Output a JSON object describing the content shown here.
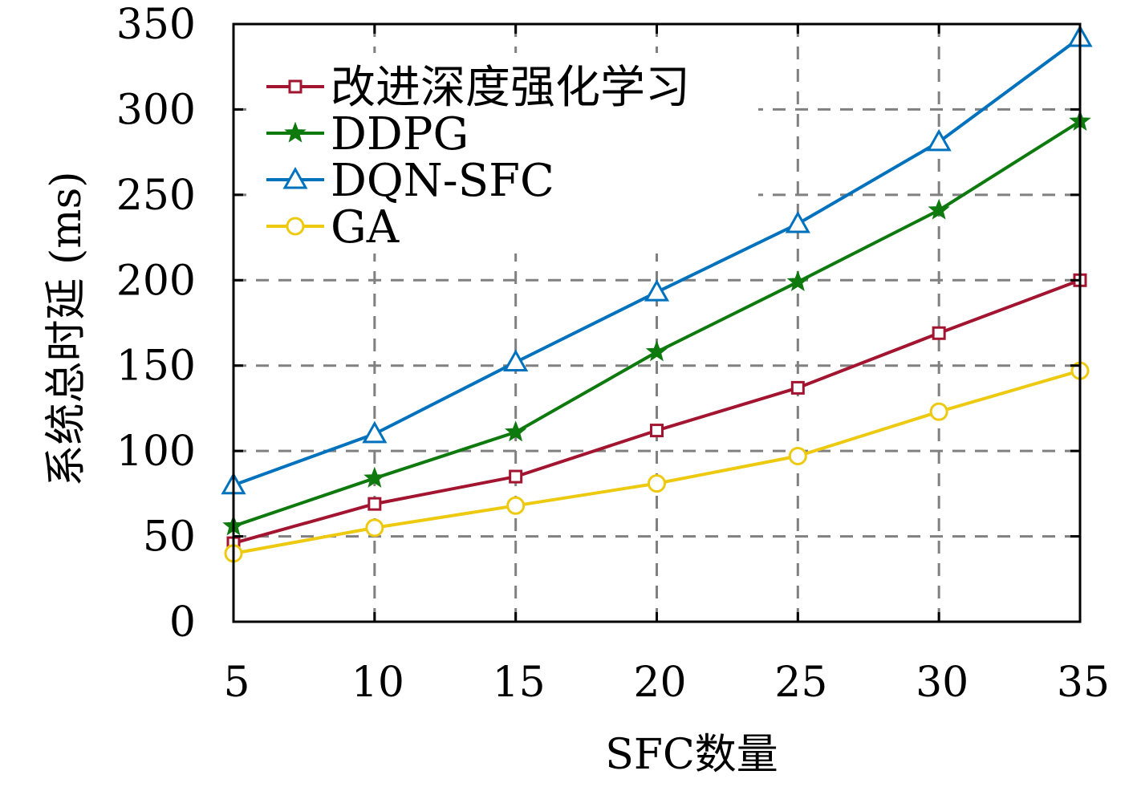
{
  "chart_data": {
    "type": "line",
    "xlabel": "SFC数量",
    "ylabel": "系统总时延 (ms)",
    "x": [
      5,
      10,
      15,
      20,
      25,
      30,
      35
    ],
    "xlim": [
      5,
      35
    ],
    "ylim": [
      0,
      350
    ],
    "x_ticks": [
      "5",
      "10",
      "15",
      "20",
      "25",
      "30",
      "35"
    ],
    "y_ticks": [
      "0",
      "50",
      "100",
      "150",
      "200",
      "250",
      "300",
      "350"
    ],
    "grid": true,
    "legend_position": "top-left",
    "series": [
      {
        "name": "改进深度强化学习",
        "color": "#A2142F",
        "marker": "square",
        "values": [
          46,
          69,
          85,
          112,
          137,
          169,
          200
        ]
      },
      {
        "name": "DDPG",
        "color": "#0E7A0E",
        "marker": "star",
        "values": [
          56,
          84,
          111,
          158,
          199,
          241,
          293
        ]
      },
      {
        "name": "DQN-SFC",
        "color": "#0072BD",
        "marker": "triangle",
        "values": [
          80,
          110,
          152,
          193,
          233,
          281,
          342
        ]
      },
      {
        "name": "GA",
        "color": "#EDC910",
        "marker": "circle",
        "values": [
          40,
          55,
          68,
          81,
          97,
          123,
          147
        ]
      }
    ]
  }
}
